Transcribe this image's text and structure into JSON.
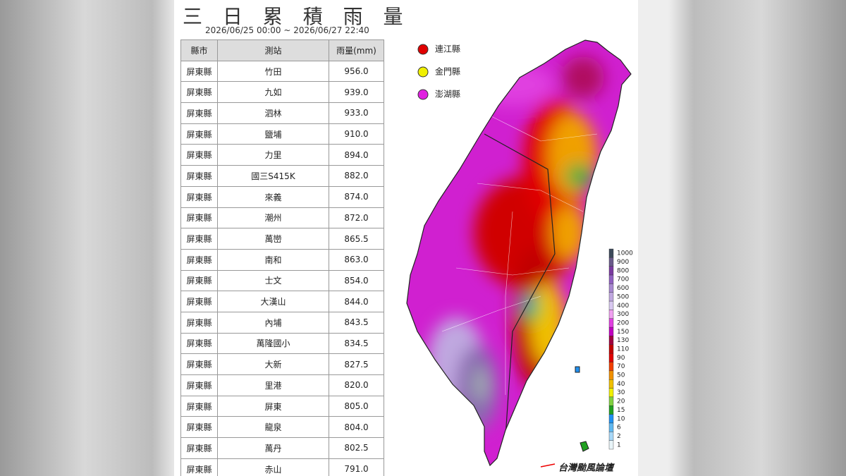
{
  "header": {
    "title": "三 日 累 積 雨 量",
    "subtitle": "2026/06/25 00:00 ~ 2026/06/27 22:40"
  },
  "table": {
    "columns": [
      "縣市",
      "測站",
      "雨量(mm)"
    ],
    "rows": [
      [
        "屏東縣",
        "竹田",
        "956.0"
      ],
      [
        "屏東縣",
        "九如",
        "939.0"
      ],
      [
        "屏東縣",
        "泗林",
        "933.0"
      ],
      [
        "屏東縣",
        "鹽埔",
        "910.0"
      ],
      [
        "屏東縣",
        "力里",
        "894.0"
      ],
      [
        "屏東縣",
        "國三S415K",
        "882.0"
      ],
      [
        "屏東縣",
        "來義",
        "874.0"
      ],
      [
        "屏東縣",
        "潮州",
        "872.0"
      ],
      [
        "屏東縣",
        "萬巒",
        "865.5"
      ],
      [
        "屏東縣",
        "南和",
        "863.0"
      ],
      [
        "屏東縣",
        "士文",
        "854.0"
      ],
      [
        "屏東縣",
        "大漢山",
        "844.0"
      ],
      [
        "屏東縣",
        "內埔",
        "843.5"
      ],
      [
        "屏東縣",
        "萬隆國小",
        "834.5"
      ],
      [
        "屏東縣",
        "大新",
        "827.5"
      ],
      [
        "屏東縣",
        "里港",
        "820.0"
      ],
      [
        "屏東縣",
        "屏東",
        "805.0"
      ],
      [
        "屏東縣",
        "龍泉",
        "804.0"
      ],
      [
        "屏東縣",
        "萬丹",
        "802.5"
      ],
      [
        "屏東縣",
        "赤山",
        "791.0"
      ]
    ]
  },
  "legend": [
    {
      "label": "連江縣",
      "color": "#e00000"
    },
    {
      "label": "金門縣",
      "color": "#f0f000"
    },
    {
      "label": "澎湖縣",
      "color": "#e020e0"
    }
  ],
  "scale": [
    {
      "label": 1000,
      "color": "#3d4a5a"
    },
    {
      "label": 900,
      "color": "#6a5a8a"
    },
    {
      "label": 800,
      "color": "#7a3aa0"
    },
    {
      "label": 700,
      "color": "#9060c0"
    },
    {
      "label": 600,
      "color": "#a888d0"
    },
    {
      "label": 500,
      "color": "#c0a8e0"
    },
    {
      "label": 400,
      "color": "#d8c8f0"
    },
    {
      "label": 300,
      "color": "#f0a0f0"
    },
    {
      "label": 200,
      "color": "#e040e0"
    },
    {
      "label": 150,
      "color": "#c000c0"
    },
    {
      "label": 130,
      "color": "#a00040"
    },
    {
      "label": 110,
      "color": "#c00000"
    },
    {
      "label": 90,
      "color": "#e00000"
    },
    {
      "label": 70,
      "color": "#f04000"
    },
    {
      "label": 50,
      "color": "#f09000"
    },
    {
      "label": 40,
      "color": "#f0c000"
    },
    {
      "label": 30,
      "color": "#f0f000"
    },
    {
      "label": 20,
      "color": "#80d040"
    },
    {
      "label": 15,
      "color": "#20a020"
    },
    {
      "label": 10,
      "color": "#2090f0"
    },
    {
      "label": 6,
      "color": "#60b8f0"
    },
    {
      "label": 2,
      "color": "#a8d8f8"
    },
    {
      "label": 1,
      "color": "#e8f4f8"
    }
  ],
  "logo": "台灣颱風論壇"
}
